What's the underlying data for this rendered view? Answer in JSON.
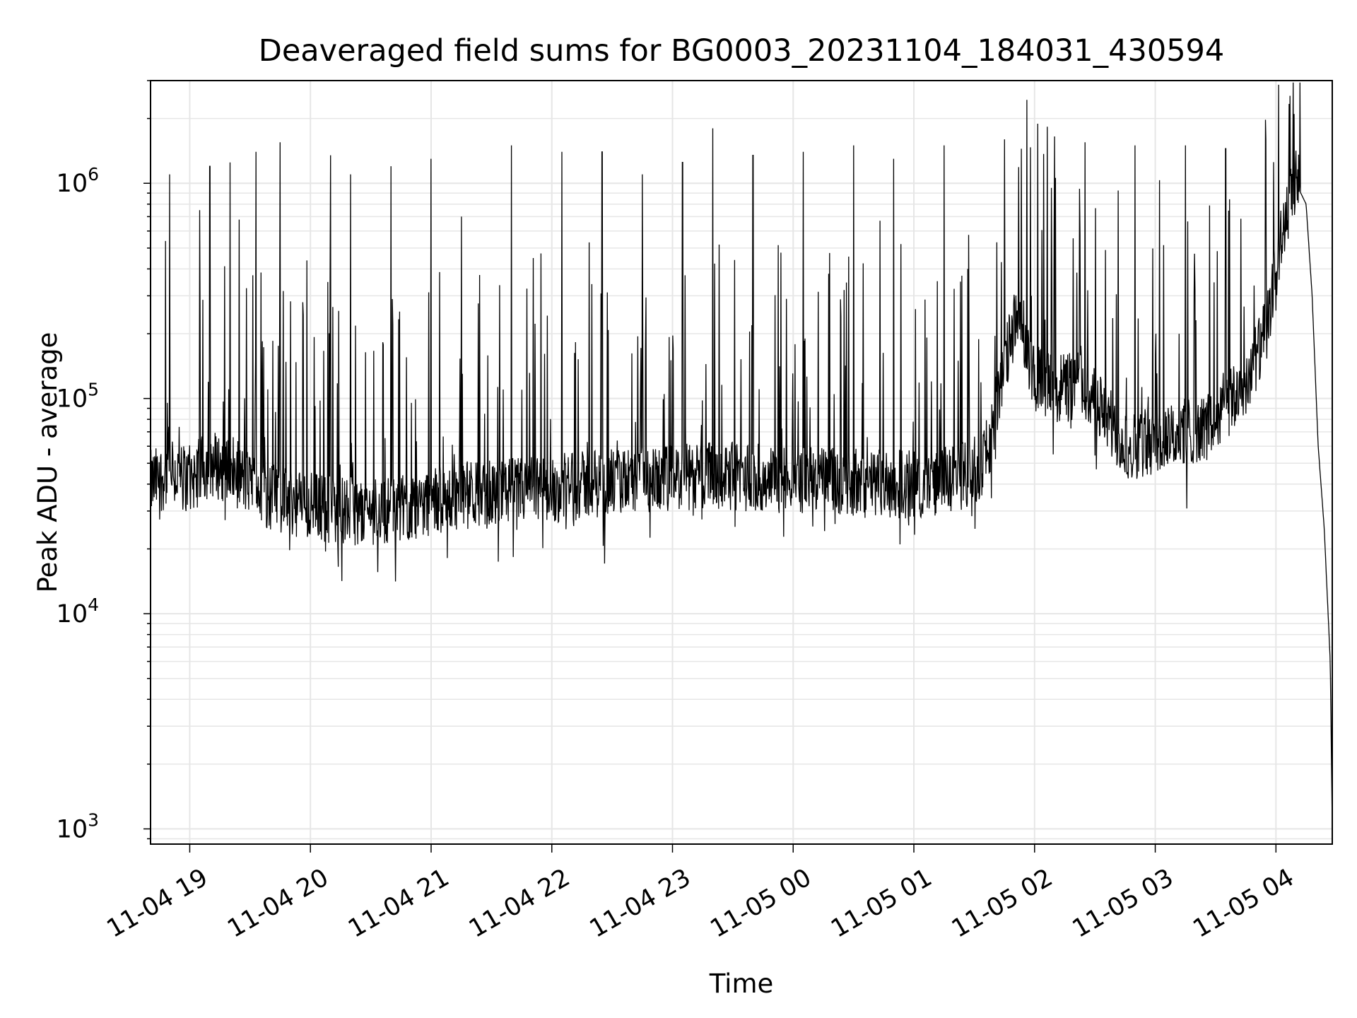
{
  "chart_data": {
    "type": "line",
    "title": "Deaveraged field sums for BG0003_20231104_184031_430594",
    "xlabel": "Time",
    "ylabel": "Peak ADU - average",
    "y_scale": "log",
    "ylim": [
      850,
      3000000
    ],
    "xlim": [
      "2023-11-04T18:40:31",
      "2023-11-05T04:28:00"
    ],
    "grid": true,
    "line_color": "#000000",
    "grid_color": "#e6e6e6",
    "x_ticks": [
      {
        "t": "2023-11-04T19:00:00",
        "label": "11-04 19"
      },
      {
        "t": "2023-11-04T20:00:00",
        "label": "11-04 20"
      },
      {
        "t": "2023-11-04T21:00:00",
        "label": "11-04 21"
      },
      {
        "t": "2023-11-04T22:00:00",
        "label": "11-04 22"
      },
      {
        "t": "2023-11-04T23:00:00",
        "label": "11-04 23"
      },
      {
        "t": "2023-11-05T00:00:00",
        "label": "11-05 00"
      },
      {
        "t": "2023-11-05T01:00:00",
        "label": "11-05 01"
      },
      {
        "t": "2023-11-05T02:00:00",
        "label": "11-05 02"
      },
      {
        "t": "2023-11-05T03:00:00",
        "label": "11-05 03"
      },
      {
        "t": "2023-11-05T04:00:00",
        "label": "11-05 04"
      }
    ],
    "y_ticks": [
      {
        "value": 1000,
        "base": "10",
        "exp": "3"
      },
      {
        "value": 10000,
        "base": "10",
        "exp": "4"
      },
      {
        "value": 100000,
        "base": "10",
        "exp": "5"
      },
      {
        "value": 1000000,
        "base": "10",
        "exp": "6"
      }
    ],
    "series": [
      {
        "x": [
          "2023-11-04T18:40:31",
          "2023-11-04T18:50:00",
          "2023-11-04T19:00:00",
          "2023-11-04T19:10:00",
          "2023-11-04T19:20:00",
          "2023-11-04T19:30:00",
          "2023-11-04T19:40:00",
          "2023-11-04T19:50:00",
          "2023-11-04T20:00:00",
          "2023-11-04T20:15:00",
          "2023-11-04T20:30:00",
          "2023-11-04T20:45:00",
          "2023-11-04T21:00:00",
          "2023-11-04T21:20:00",
          "2023-11-04T21:40:00",
          "2023-11-04T22:00:00",
          "2023-11-04T22:20:00",
          "2023-11-04T22:40:00",
          "2023-11-04T23:00:00",
          "2023-11-04T23:20:00",
          "2023-11-04T23:40:00",
          "2023-11-05T00:00:00",
          "2023-11-05T00:20:00",
          "2023-11-05T00:40:00",
          "2023-11-05T01:00:00",
          "2023-11-05T01:20:00",
          "2023-11-05T01:35:00",
          "2023-11-05T01:40:00",
          "2023-11-05T01:50:00",
          "2023-11-05T02:00:00",
          "2023-11-05T02:10:00",
          "2023-11-05T02:20:00",
          "2023-11-05T02:30:00",
          "2023-11-05T02:45:00",
          "2023-11-05T03:00:00",
          "2023-11-05T03:15:00",
          "2023-11-05T03:30:00",
          "2023-11-05T03:45:00",
          "2023-11-05T03:55:00",
          "2023-11-05T04:00:00",
          "2023-11-05T04:05:00",
          "2023-11-05T04:10:00",
          "2023-11-05T04:15:00",
          "2023-11-05T04:18:00",
          "2023-11-05T04:21:00",
          "2023-11-05T04:24:00",
          "2023-11-05T04:27:00",
          "2023-11-05T04:28:00"
        ],
        "y": [
          40000,
          45000,
          42000,
          50000,
          47000,
          40000,
          35000,
          33000,
          32000,
          30000,
          30000,
          31000,
          33000,
          36000,
          37000,
          38000,
          40000,
          41000,
          42000,
          44000,
          43000,
          42000,
          41000,
          40000,
          40000,
          42000,
          50000,
          80000,
          230000,
          130000,
          110000,
          120000,
          100000,
          60000,
          62000,
          70000,
          75000,
          120000,
          200000,
          400000,
          700000,
          1000000,
          800000,
          300000,
          60000,
          25000,
          6000,
          1000
        ],
        "spikes": [
          {
            "t": "2023-11-04T18:50:00",
            "y": 1100000
          },
          {
            "t": "2023-11-04T19:05:00",
            "y": 750000
          },
          {
            "t": "2023-11-04T19:10:00",
            "y": 1200000
          },
          {
            "t": "2023-11-04T19:20:00",
            "y": 1250000
          },
          {
            "t": "2023-11-04T19:33:00",
            "y": 1400000
          },
          {
            "t": "2023-11-04T19:45:00",
            "y": 1550000
          },
          {
            "t": "2023-11-04T20:10:00",
            "y": 1350000
          },
          {
            "t": "2023-11-04T20:20:00",
            "y": 1100000
          },
          {
            "t": "2023-11-04T20:40:00",
            "y": 1200000
          },
          {
            "t": "2023-11-04T21:00:00",
            "y": 1300000
          },
          {
            "t": "2023-11-04T21:15:00",
            "y": 700000
          },
          {
            "t": "2023-11-04T21:40:00",
            "y": 1500000
          },
          {
            "t": "2023-11-04T22:05:00",
            "y": 1400000
          },
          {
            "t": "2023-11-04T22:25:00",
            "y": 1400000
          },
          {
            "t": "2023-11-04T22:45:00",
            "y": 1100000
          },
          {
            "t": "2023-11-04T23:05:00",
            "y": 1250000
          },
          {
            "t": "2023-11-04T23:20:00",
            "y": 1800000
          },
          {
            "t": "2023-11-04T23:40:00",
            "y": 1350000
          },
          {
            "t": "2023-11-05T00:05:00",
            "y": 1400000
          },
          {
            "t": "2023-11-05T00:30:00",
            "y": 1500000
          },
          {
            "t": "2023-11-05T00:50:00",
            "y": 1300000
          },
          {
            "t": "2023-11-05T01:15:00",
            "y": 1500000
          },
          {
            "t": "2023-11-05T01:45:00",
            "y": 1600000
          },
          {
            "t": "2023-11-05T02:10:00",
            "y": 1650000
          },
          {
            "t": "2023-11-05T02:25:00",
            "y": 1550000
          },
          {
            "t": "2023-11-05T02:50:00",
            "y": 1500000
          },
          {
            "t": "2023-11-05T03:15:00",
            "y": 1500000
          },
          {
            "t": "2023-11-05T03:35:00",
            "y": 1450000
          },
          {
            "t": "2023-11-05T03:55:00",
            "y": 1600000
          },
          {
            "t": "2023-11-05T04:09:00",
            "y": 2100000
          }
        ]
      }
    ]
  }
}
